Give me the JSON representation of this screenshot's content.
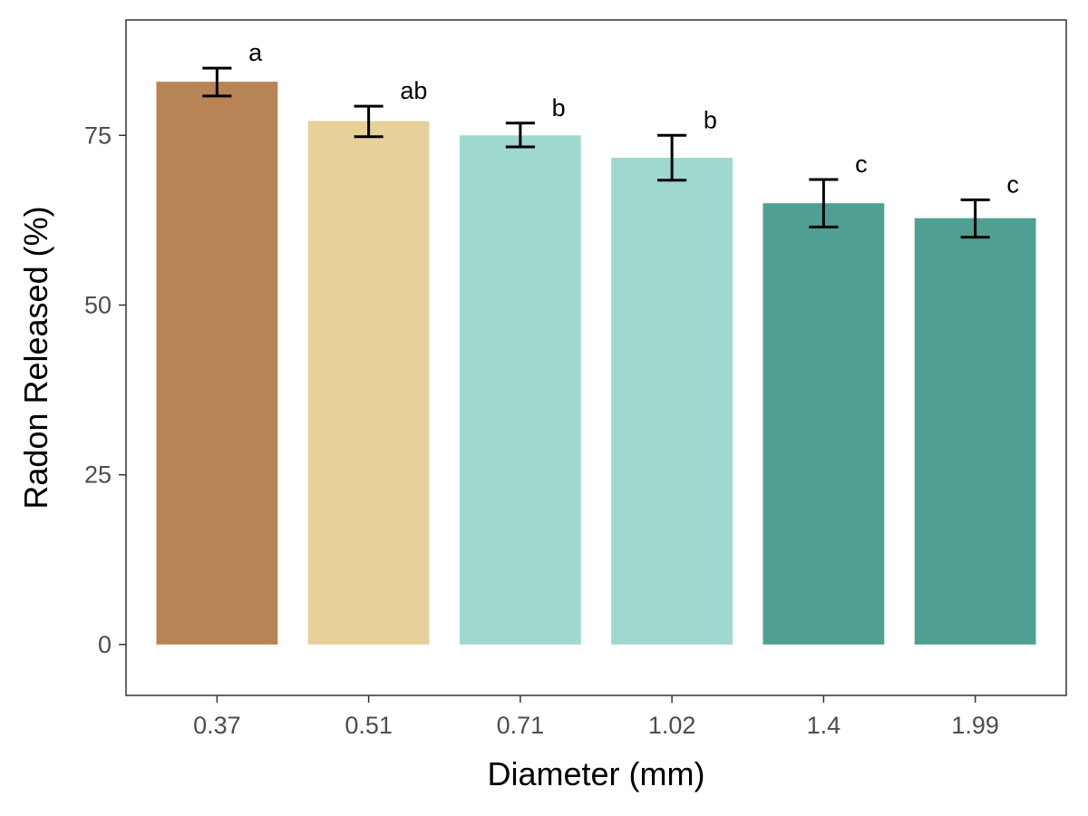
{
  "chart_data": {
    "type": "bar",
    "title": "",
    "xlabel": "Diameter (mm)",
    "ylabel": "Radon Released (%)",
    "ylim": [
      -7.5,
      92
    ],
    "yticks": [
      0,
      25,
      50,
      75
    ],
    "grid": false,
    "categories": [
      "0.37",
      "0.51",
      "0.71",
      "1.02",
      "1.4",
      "1.99"
    ],
    "values": [
      82.9,
      77.1,
      75.0,
      71.7,
      65.0,
      62.8
    ],
    "error_low": [
      80.8,
      74.8,
      73.3,
      68.4,
      61.5,
      60.0
    ],
    "error_high": [
      84.9,
      79.3,
      76.8,
      75.0,
      68.5,
      65.5
    ],
    "significance_labels": [
      "a",
      "ab",
      "b",
      "b",
      "c",
      "c"
    ],
    "colors": [
      "#b88355",
      "#e8d09b",
      "#9fd8cf",
      "#9fd8cf",
      "#4fa093",
      "#4fa093"
    ]
  }
}
